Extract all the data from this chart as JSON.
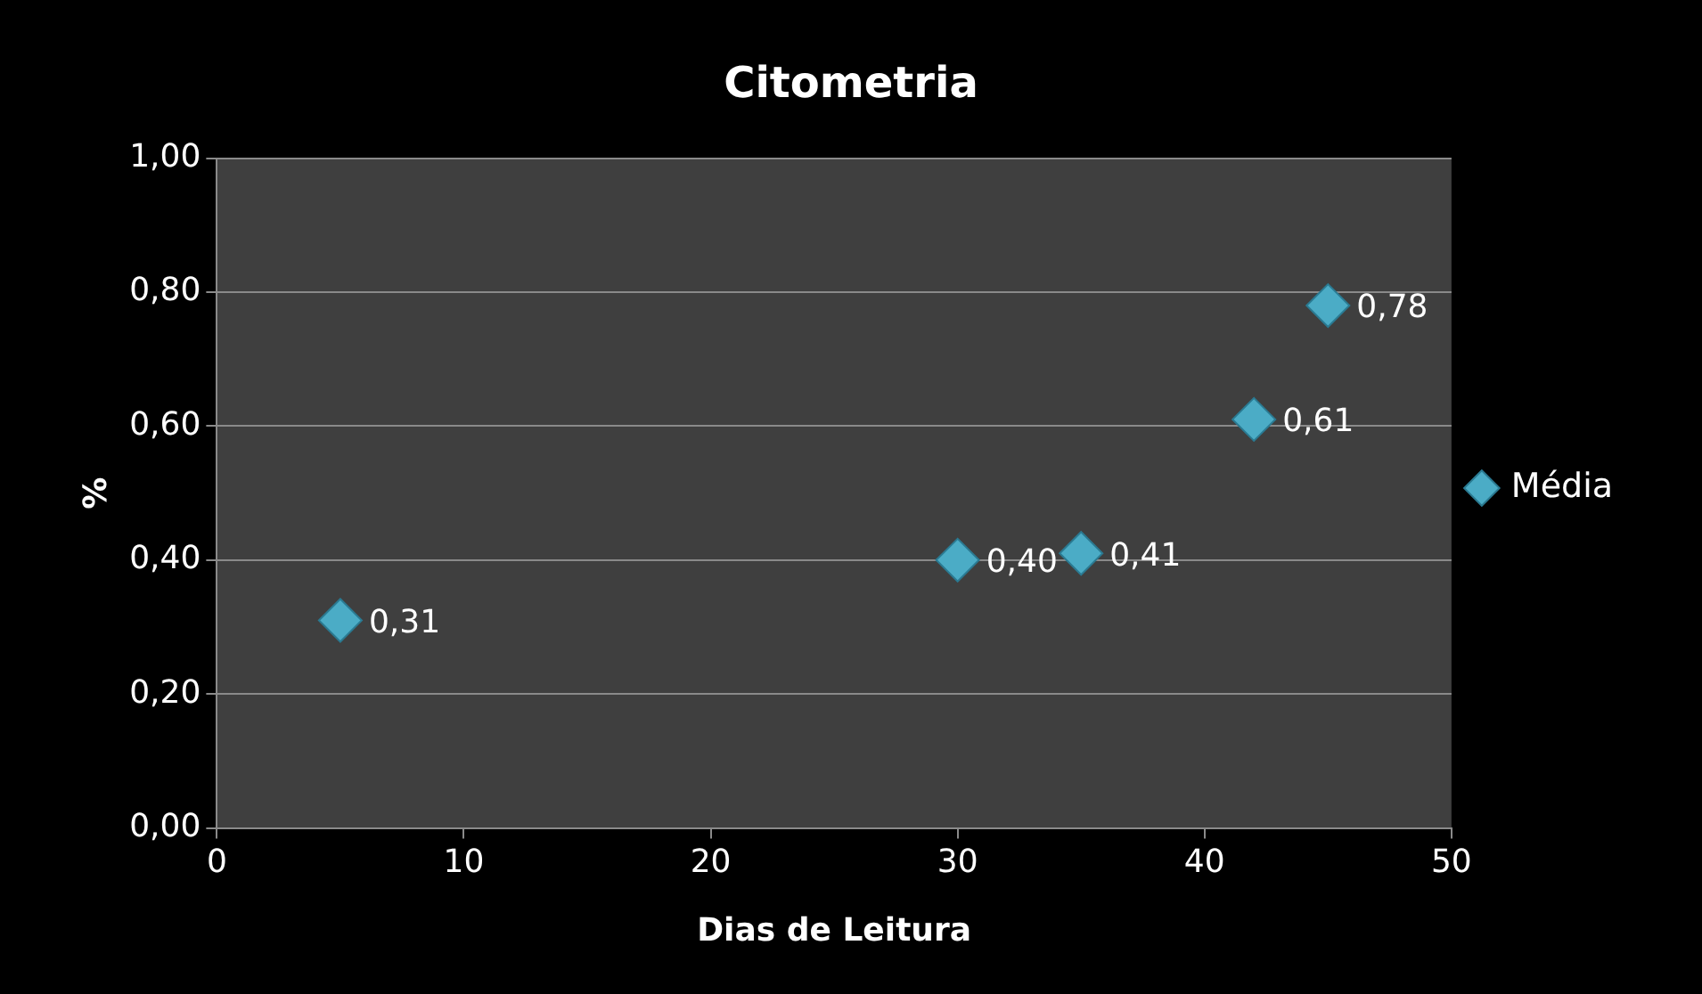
{
  "chart_data": {
    "type": "scatter",
    "title": "Citometria",
    "xlabel": "Dias de Leitura",
    "ylabel": "%",
    "x": [
      5,
      30,
      35,
      42,
      45
    ],
    "series": [
      {
        "name": "Média",
        "color": "#4bacc6",
        "values": [
          0.31,
          0.4,
          0.41,
          0.61,
          0.78
        ],
        "value_labels": [
          "0,31",
          "0,40",
          "0,41",
          "0,61",
          "0,78"
        ]
      }
    ],
    "xlim": [
      0,
      50
    ],
    "xticks": [
      0,
      10,
      20,
      30,
      40,
      50
    ],
    "ylim": [
      0,
      1
    ],
    "yticks": [
      {
        "value": 0,
        "label": "0,00"
      },
      {
        "value": 0.2,
        "label": "0,20"
      },
      {
        "value": 0.4,
        "label": "0,40"
      },
      {
        "value": 0.6,
        "label": "0,60"
      },
      {
        "value": 0.8,
        "label": "0,80"
      },
      {
        "value": 1,
        "label": "1,00"
      }
    ],
    "grid": "y",
    "legend": "right",
    "marker": "diamond"
  }
}
